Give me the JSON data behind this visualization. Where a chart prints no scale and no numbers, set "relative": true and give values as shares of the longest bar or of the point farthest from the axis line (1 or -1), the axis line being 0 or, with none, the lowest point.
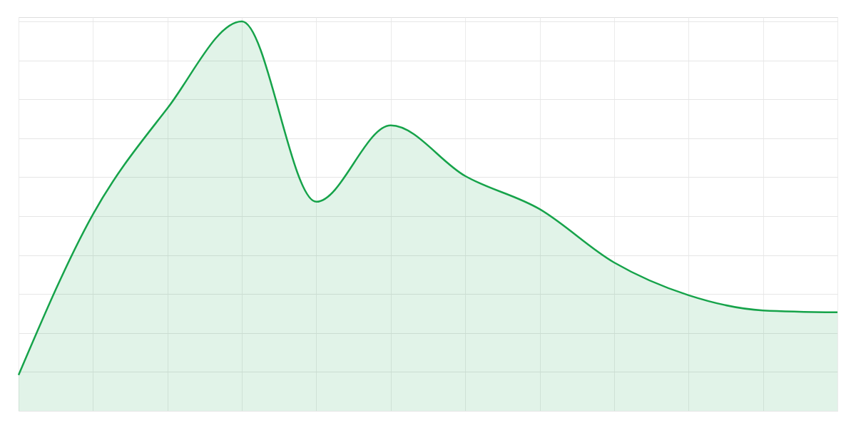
{
  "chart_data": {
    "type": "area",
    "relative": true,
    "grid": true,
    "categories": [
      null,
      null,
      null,
      null,
      null,
      null,
      null,
      null,
      null,
      null,
      null,
      null
    ],
    "series": [
      {
        "color": "#16a34a",
        "values": [
          0.092,
          0.505,
          0.777,
          1,
          0.537,
          0.733,
          0.603,
          0.518,
          0.381,
          0.297,
          0.258,
          0.253
        ]
      }
    ]
  }
}
